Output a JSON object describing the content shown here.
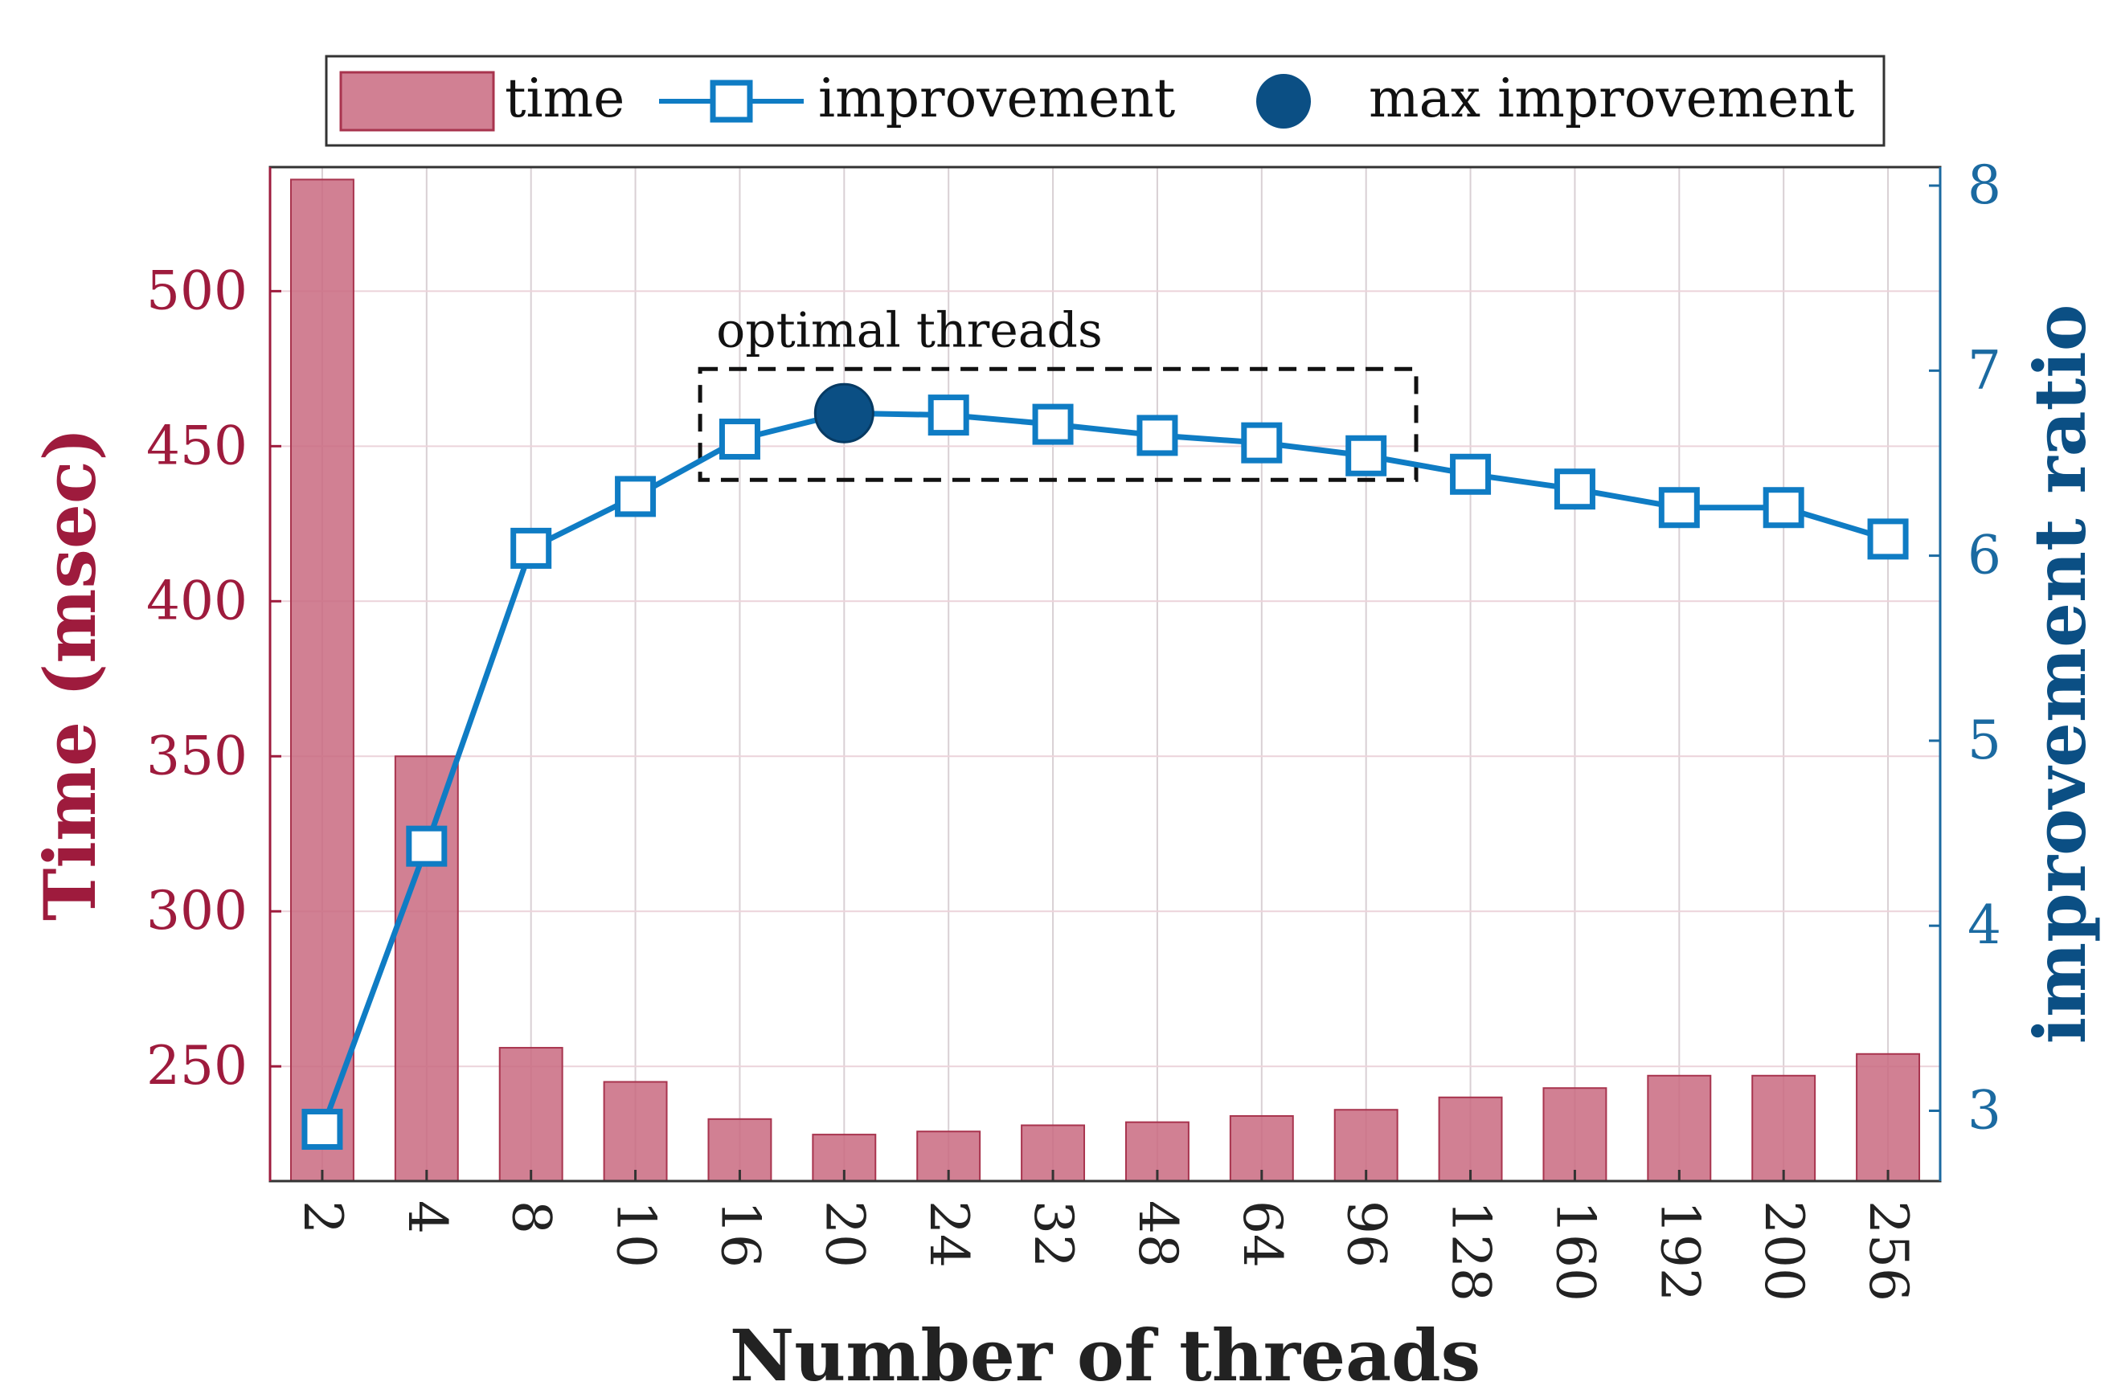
{
  "chart_data": {
    "type": "bar",
    "title": "",
    "xlabel": "Number of threads",
    "ylabel": "Time (msec)",
    "y2label": "improvement ratio",
    "categories": [
      "2",
      "4",
      "8",
      "10",
      "16",
      "20",
      "24",
      "32",
      "48",
      "64",
      "96",
      "128",
      "160",
      "192",
      "200",
      "256"
    ],
    "ylim": [
      213,
      540
    ],
    "y2lim": [
      2.62,
      8.1
    ],
    "yticks": [
      250,
      300,
      350,
      400,
      450,
      500
    ],
    "y2ticks": [
      3,
      4,
      5,
      6,
      7,
      8
    ],
    "grid": true,
    "legend_position": "top",
    "series": [
      {
        "name": "time",
        "kind": "bar",
        "axis": "left",
        "color": "#c96a80",
        "values": [
          536,
          350,
          256,
          245,
          233,
          228,
          229,
          231,
          232,
          234,
          236,
          240,
          243,
          247,
          247,
          254
        ]
      },
      {
        "name": "improvement",
        "kind": "line",
        "axis": "right",
        "color": "#0f7cc4",
        "values": [
          2.9,
          4.43,
          6.04,
          6.32,
          6.63,
          6.77,
          6.76,
          6.71,
          6.65,
          6.61,
          6.54,
          6.44,
          6.36,
          6.26,
          6.26,
          6.09
        ]
      },
      {
        "name": "max improvement",
        "kind": "marker",
        "axis": "right",
        "color": "#0b4f84",
        "category": "20",
        "value": 6.77
      }
    ],
    "annotation": {
      "text": "optimal threads",
      "from_category": "16",
      "to_category": "96"
    }
  }
}
